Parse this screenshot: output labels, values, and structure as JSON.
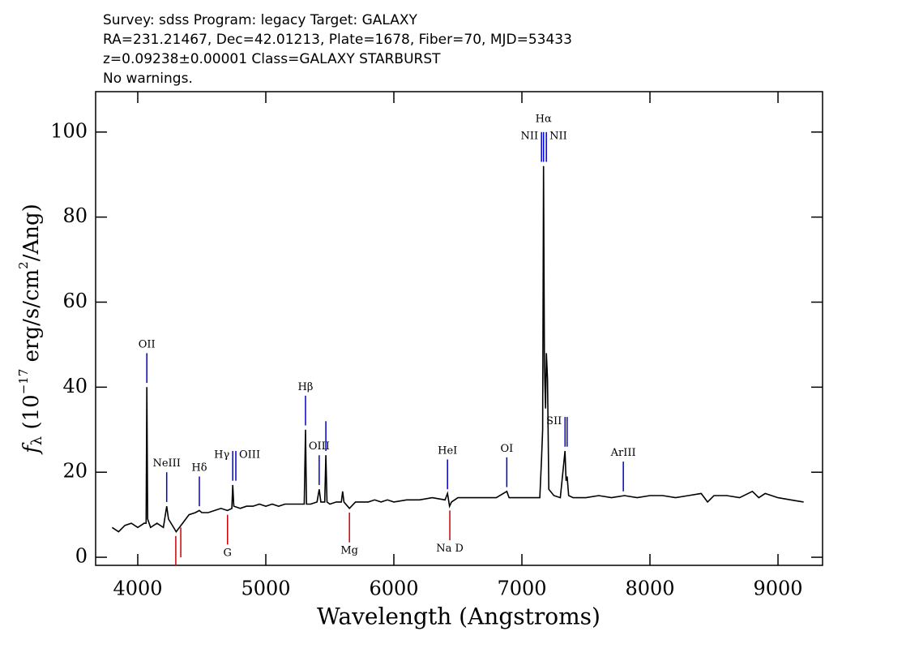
{
  "chart_data": {
    "type": "line",
    "header": [
      "Survey: sdss Program: legacy Target: GALAXY",
      "RA=231.21467, Dec=42.01213, Plate=1678, Fiber=70, MJD=53433",
      "z=0.09238±0.00001 Class=GALAXY STARBURST",
      "No warnings."
    ],
    "xlabel": "Wavelength (Angstroms)",
    "ylabel": [
      "f",
      "λ",
      " (10",
      "−17",
      " erg/s/cm",
      "2",
      "/Ang)"
    ],
    "color": "#000000",
    "x": [
      3800,
      3850,
      3900,
      3950,
      4000,
      4050,
      4065,
      4071,
      4077,
      4100,
      4150,
      4200,
      4226,
      4240,
      4300,
      4350,
      4400,
      4450,
      4481,
      4500,
      4550,
      4600,
      4650,
      4700,
      4735,
      4742,
      4750,
      4800,
      4850,
      4900,
      4950,
      5000,
      5050,
      5100,
      5150,
      5200,
      5250,
      5300,
      5310,
      5318,
      5350,
      5400,
      5417,
      5430,
      5460,
      5469,
      5478,
      5500,
      5550,
      5590,
      5600,
      5610,
      5653,
      5700,
      5750,
      5800,
      5850,
      5900,
      5950,
      6000,
      6100,
      6200,
      6300,
      6400,
      6419,
      6435,
      6450,
      6500,
      6600,
      6700,
      6800,
      6882,
      6900,
      7000,
      7100,
      7140,
      7153,
      7162,
      7169,
      7176,
      7185,
      7191,
      7200,
      7210,
      7250,
      7300,
      7337,
      7345,
      7353,
      7365,
      7400,
      7500,
      7600,
      7700,
      7800,
      7900,
      8000,
      8100,
      8200,
      8300,
      8400,
      8450,
      8500,
      8600,
      8700,
      8800,
      8850,
      8900,
      9000,
      9100,
      9200
    ],
    "values": [
      7,
      6,
      7.5,
      8,
      7,
      8,
      8,
      40,
      9,
      7,
      8,
      7,
      12,
      9,
      6,
      8,
      10,
      10.5,
      11,
      10.5,
      10.5,
      11,
      11.5,
      11,
      11.5,
      17,
      12,
      11.5,
      12,
      12,
      12.5,
      12,
      12.5,
      12,
      12.5,
      12.5,
      12.5,
      12.5,
      30,
      12.5,
      12.5,
      13,
      16,
      13,
      13,
      24,
      13,
      12.5,
      13,
      13,
      15.5,
      13,
      11.5,
      13,
      13,
      13,
      13.5,
      13,
      13.5,
      13,
      13.5,
      13.5,
      14,
      13.5,
      15,
      12,
      13,
      14,
      14,
      14,
      14,
      15.5,
      14,
      14,
      14,
      14,
      23,
      30,
      92,
      45,
      35,
      48,
      42,
      16,
      14.5,
      14,
      25,
      18,
      19,
      14.5,
      14,
      14,
      14.5,
      14,
      14.5,
      14,
      14.5,
      14.5,
      14,
      14.5,
      15,
      13,
      14.5,
      14.5,
      14,
      15.5,
      14,
      15,
      14,
      13.5,
      13
    ],
    "xlim": [
      3671,
      9348
    ],
    "ylim": [
      -1.9,
      109.5
    ],
    "xticks": [
      4000,
      5000,
      6000,
      7000,
      8000,
      9000
    ],
    "yticks": [
      0,
      20,
      40,
      60,
      80,
      100
    ],
    "emission_color": "#0000cc",
    "absorption_color": "#cc0000",
    "emission_lines": [
      {
        "label": "OII",
        "x": 4071
      },
      {
        "label": "NeIII",
        "x": 4226
      },
      {
        "label": "Hδ",
        "x": 4481
      },
      {
        "label": "Hγ",
        "x": 4742
      },
      {
        "label": "OIII",
        "x": 4766
      },
      {
        "label": "Hβ",
        "x": 5310
      },
      {
        "label": "OIII",
        "x": 5417
      },
      {
        "label": "",
        "x": 5469
      },
      {
        "label": "HeI",
        "x": 6419
      },
      {
        "label": "OI",
        "x": 6882
      },
      {
        "label": "NII",
        "x": 7153
      },
      {
        "label": "Hα",
        "x": 7169
      },
      {
        "label": "NII",
        "x": 7191
      },
      {
        "label": "SII",
        "x": 7337
      },
      {
        "label": "",
        "x": 7353
      },
      {
        "label": "ArIII",
        "x": 7792
      }
    ],
    "absorption_lines": [
      {
        "label": null,
        "x": 4297
      },
      {
        "label": null,
        "x": 4336
      },
      {
        "label": "G",
        "x": 4701
      },
      {
        "label": "Mg",
        "x": 5653
      },
      {
        "label": "Na D",
        "x": 6437
      }
    ]
  }
}
